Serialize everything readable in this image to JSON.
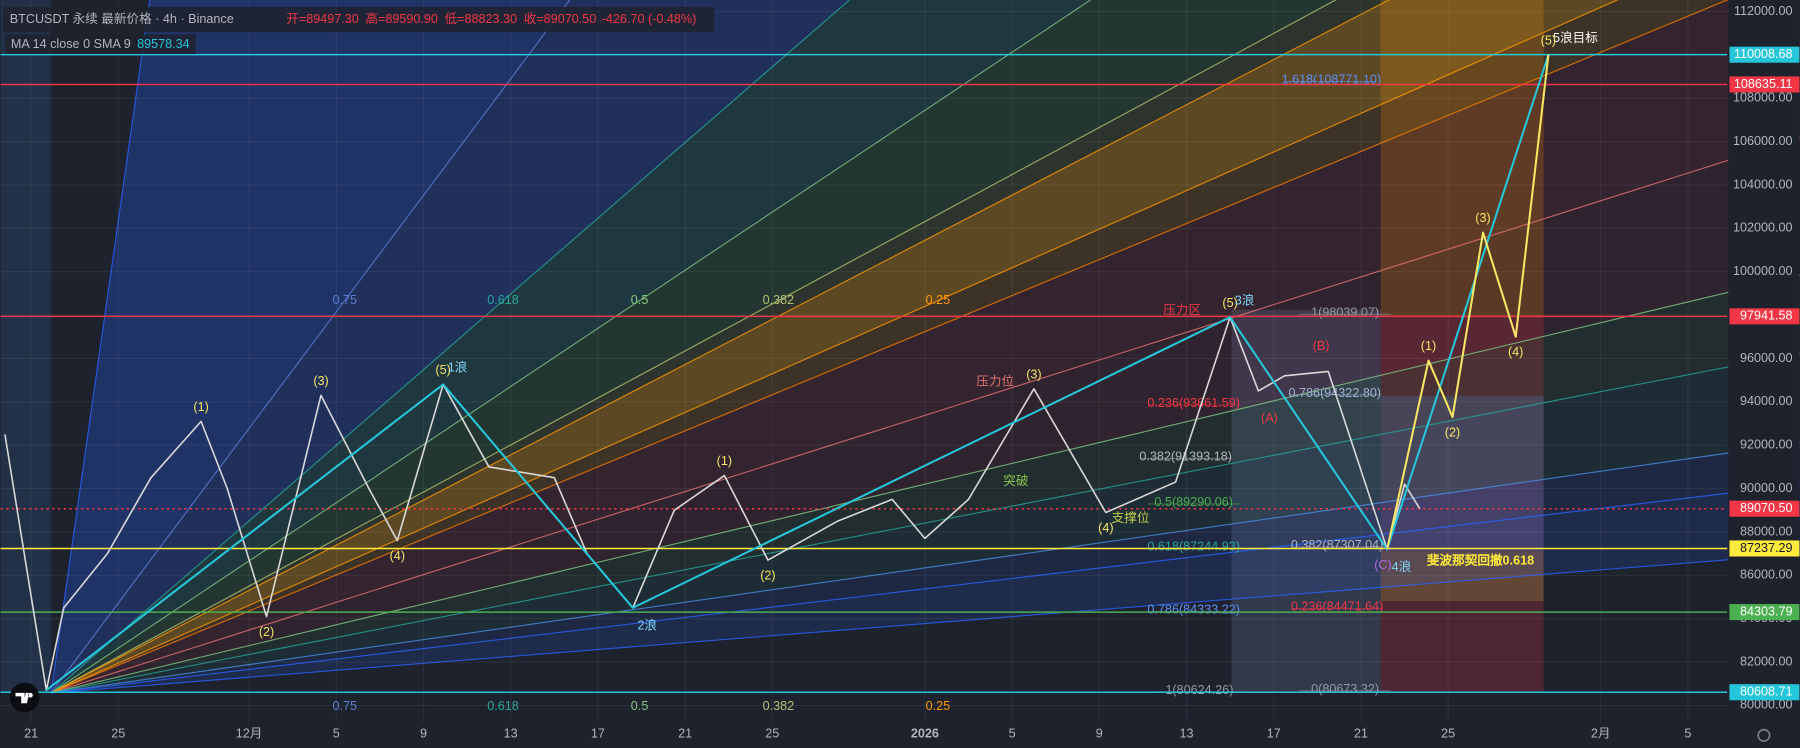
{
  "header": {
    "symbol": "BTCUSDT 永续 最新价格 · 4h · Binance",
    "open": "开=89497.30",
    "high": "高=89590.90",
    "low": "低=88823.30",
    "close": "收=89070.50",
    "change": "-426.70 (-0.48%)",
    "indicator": "MA 14 close 0 SMA 9",
    "indicator_value": "89578.34"
  },
  "chart_data": {
    "type": "line",
    "xlim": [
      -1.4,
      77.8
    ],
    "ylim": [
      79200,
      112530
    ],
    "xticks": [
      {
        "value": 0,
        "label": "21"
      },
      {
        "value": 4,
        "label": "25"
      },
      {
        "value": 10,
        "label": "12月"
      },
      {
        "value": 14,
        "label": "5"
      },
      {
        "value": 18,
        "label": "9"
      },
      {
        "value": 22,
        "label": "13"
      },
      {
        "value": 26,
        "label": "17"
      },
      {
        "value": 30,
        "label": "21"
      },
      {
        "value": 34,
        "label": "25"
      },
      {
        "value": 41,
        "label": "2026"
      },
      {
        "value": 45,
        "label": "5"
      },
      {
        "value": 49,
        "label": "9"
      },
      {
        "value": 53,
        "label": "13"
      },
      {
        "value": 57,
        "label": "17"
      },
      {
        "value": 61,
        "label": "21"
      },
      {
        "value": 65,
        "label": "25"
      },
      {
        "value": 72,
        "label": "2月"
      },
      {
        "value": 76,
        "label": "5"
      }
    ],
    "yticks": [
      {
        "value": 80000,
        "label": "80000.00"
      },
      {
        "value": 82000,
        "label": "82000.00"
      },
      {
        "value": 84000,
        "label": "84000.00"
      },
      {
        "value": 86000,
        "label": "86000.00"
      },
      {
        "value": 88000,
        "label": "88000.00"
      },
      {
        "value": 90000,
        "label": "90000.00"
      },
      {
        "value": 92000,
        "label": "92000.00"
      },
      {
        "value": 94000,
        "label": "94000.00"
      },
      {
        "value": 96000,
        "label": "96000.00"
      },
      {
        "value": 98000,
        "label": "98000.00"
      },
      {
        "value": 100000,
        "label": "100000.00"
      },
      {
        "value": 102000,
        "label": "102000.00"
      },
      {
        "value": 104000,
        "label": "104000.00"
      },
      {
        "value": 106000,
        "label": "106000.00"
      },
      {
        "value": 108000,
        "label": "108000.00"
      },
      {
        "value": 110000,
        "label": "110000.00"
      },
      {
        "value": 112000,
        "label": "112000.00"
      }
    ],
    "grid": true,
    "levels": [
      {
        "value": 110008.68,
        "color": "#26c6da"
      },
      {
        "value": 108635.11,
        "color": "#f23645"
      },
      {
        "value": 97941.58,
        "color": "#f23645"
      },
      {
        "value": 89070.5,
        "label": "89070.50",
        "color": "#f23645"
      },
      {
        "value": 87237.29,
        "color": "#ffeb3b"
      },
      {
        "value": 84303.79,
        "color": "#4caf50"
      },
      {
        "value": 80608.71,
        "color": "#26c6da"
      }
    ],
    "price": {
      "color": "#d8d8d8",
      "x": [
        -1.2,
        0.7,
        1.5,
        3.5,
        5.5,
        7.8,
        9,
        10.8,
        13.3,
        15.5,
        16.8,
        18.9,
        21,
        24,
        25.5,
        27.6,
        29.5,
        31.8,
        33.8,
        37,
        39.5,
        41,
        43,
        46,
        49.3,
        52.5,
        55,
        56.3,
        57.5,
        59.5,
        62.2,
        63,
        63.7
      ],
      "values": [
        92500,
        80700,
        84500,
        87000,
        90500,
        93100,
        90000,
        84100,
        94300,
        90000,
        87600,
        94800,
        91000,
        90500,
        87000,
        84500,
        89000,
        90600,
        86700,
        88500,
        89500,
        87700,
        89500,
        94600,
        88900,
        90300,
        97900,
        94500,
        95200,
        95400,
        87200,
        90200,
        89070.5
      ],
      "labels": [
        null,
        null,
        null,
        null,
        null,
        "(1)",
        null,
        "(2)",
        "(3)",
        null,
        "(4)",
        "(5)",
        null,
        null,
        null,
        null,
        null,
        "(1)",
        "(2)",
        null,
        null,
        null,
        null,
        "(3)",
        "(4)",
        null,
        "(5)",
        null,
        null,
        null,
        null,
        null,
        null
      ]
    },
    "projection": {
      "color": "#f5e663",
      "x": [
        62.2,
        64.1,
        65.2,
        66.6,
        68.1,
        69.6
      ],
      "values": [
        87200,
        95900,
        93300,
        101800,
        97000,
        110000
      ],
      "labels": [
        null,
        "(1)",
        "(2)",
        "(3)",
        "(4)",
        "(5)"
      ]
    },
    "waves": {
      "color": "#26c6da",
      "x": [
        0.7,
        18.9,
        27.6,
        55,
        62.2,
        69.6
      ],
      "values": [
        80700,
        94800,
        84500,
        97900,
        87200,
        110000
      ],
      "labels": [
        null,
        "1浪",
        "2浪",
        "3浪",
        "4浪",
        "5浪目标"
      ]
    },
    "fan_labels": [
      {
        "text": "0.75",
        "color": "#5b7fd6"
      },
      {
        "text": "0.618",
        "color": "#26a69a"
      },
      {
        "text": "0.5",
        "color": "#81c784"
      },
      {
        "text": "0.382",
        "color": "#b5c46e"
      },
      {
        "text": "0.25",
        "color": "#ff9800"
      }
    ],
    "fib_levels": [
      {
        "label": "1.618(108771.10)",
        "value": 108771.1,
        "color": "#5b8ff6"
      },
      {
        "label": "1(98039.07)",
        "value": 98039.07,
        "color": "#9598a1"
      },
      {
        "label": "0.786(94322.80)",
        "value": 94322.8,
        "color": "#9fb0d0"
      },
      {
        "label": "0.236(93861.59)",
        "value": 93861.59,
        "color": "#f23645"
      },
      {
        "label": "0.382(91393.18)",
        "value": 91393.18,
        "color": "#b0b3bb"
      },
      {
        "label": "0.5(89290.06)",
        "value": 89290.06,
        "color": "#4caf50"
      },
      {
        "label": "0.618(87244.93)",
        "value": 87244.93,
        "color": "#26a69a"
      },
      {
        "label": "0.786(84333.22)",
        "value": 84333.22,
        "color": "#5b8ff6"
      },
      {
        "label": "1(80624.26)",
        "value": 80624.26,
        "color": "#9598a1"
      },
      {
        "label": "0.382(87307.04)",
        "value": 87307.04,
        "color": "#b0b3bb"
      },
      {
        "label": "0.236(84471.64)",
        "value": 84471.64,
        "color": "#f23645"
      },
      {
        "label": "0(80673.32)",
        "value": 80673.32,
        "color": "#9598a1"
      }
    ],
    "notes": [
      {
        "text": "压力位",
        "color": "#e57373"
      },
      {
        "text": "压力区",
        "color": "#f23645"
      },
      {
        "text": "突破",
        "color": "#8bc34a"
      },
      {
        "text": "支撑位",
        "color": "#c5d34a"
      },
      {
        "text": "斐波那契回撤0.618",
        "color": "#ffeb3b"
      },
      {
        "text": "(A)",
        "color": "#f23645"
      },
      {
        "text": "(B)",
        "color": "#f23645"
      },
      {
        "text": "(C)",
        "color": "#b36be0"
      }
    ]
  }
}
